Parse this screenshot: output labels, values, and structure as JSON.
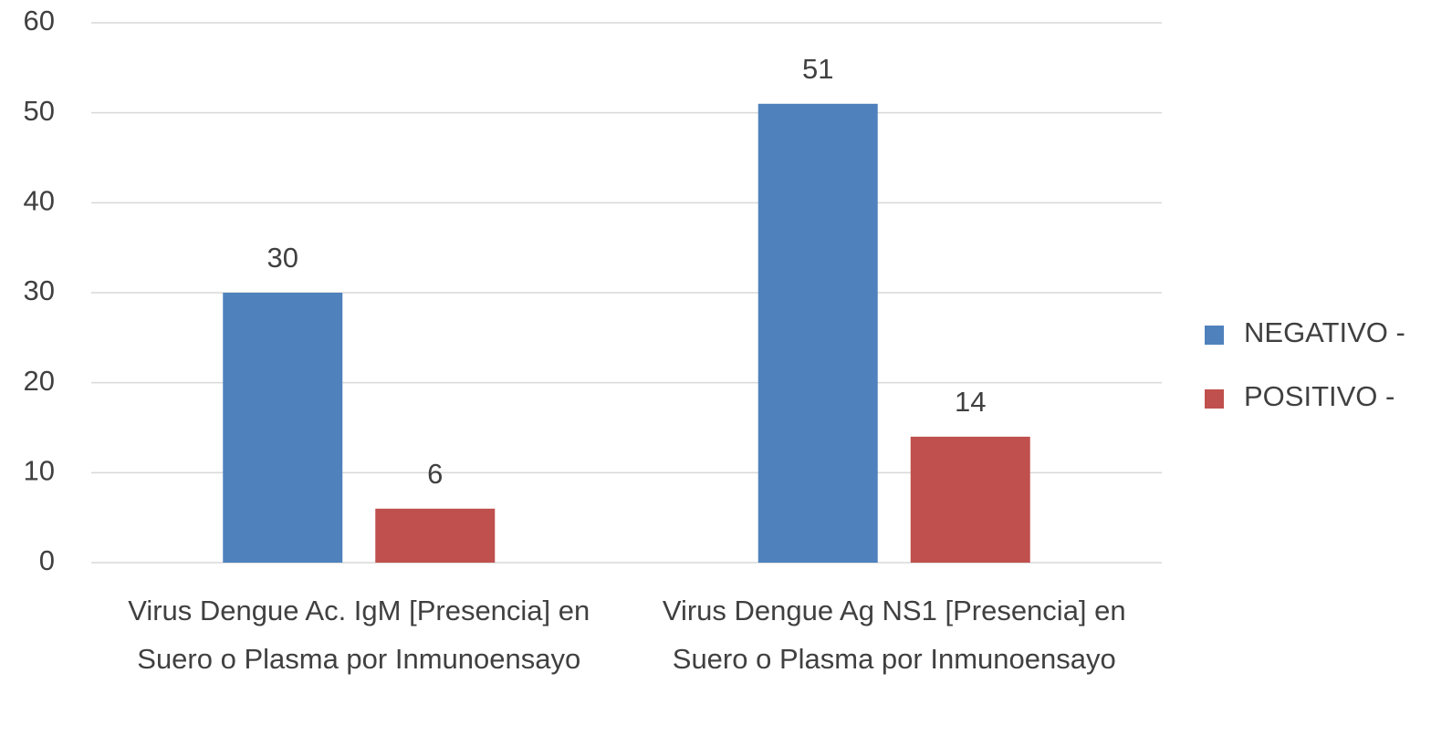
{
  "chart_data": {
    "type": "bar",
    "categories": [
      "Virus Dengue Ac. IgM [Presencia] en Suero o Plasma por Inmunoensayo",
      "Virus Dengue Ag NS1 [Presencia] en Suero o Plasma por Inmunoensayo"
    ],
    "series": [
      {
        "name": "NEGATIVO -",
        "color": "#4f81bd",
        "values": [
          30,
          51
        ]
      },
      {
        "name": "POSITIVO -",
        "color": "#c0504d",
        "values": [
          6,
          14
        ]
      }
    ],
    "ylim": [
      0,
      60
    ],
    "yticks": [
      0,
      10,
      20,
      30,
      40,
      50,
      60
    ],
    "grid": true,
    "legend": "right"
  }
}
